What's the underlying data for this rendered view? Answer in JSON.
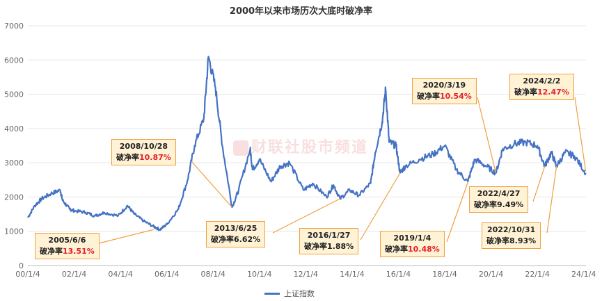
{
  "chart_data": {
    "type": "line",
    "title": "2000年以来市场历次大底时破净率",
    "ylim": [
      0,
      7000
    ],
    "yticks": [
      0,
      1000,
      2000,
      3000,
      4000,
      5000,
      6000,
      7000
    ],
    "xticks": [
      "00/1/4",
      "02/1/4",
      "04/1/4",
      "06/1/4",
      "08/1/4",
      "10/1/4",
      "12/1/4",
      "14/1/4",
      "16/1/4",
      "18/1/4",
      "20/1/4",
      "22/1/4",
      "24/1/4"
    ],
    "xlim": [
      2000.0,
      2024.1
    ],
    "series": [
      {
        "name": "上证指数",
        "color": "#4472c4",
        "x": [
          2000.0,
          2000.3,
          2000.6,
          2001.0,
          2001.4,
          2001.5,
          2001.8,
          2002.0,
          2002.5,
          2002.9,
          2003.3,
          2003.9,
          2004.3,
          2004.6,
          2005.0,
          2005.4,
          2005.7,
          2006.0,
          2006.5,
          2006.9,
          2007.2,
          2007.6,
          2007.8,
          2008.1,
          2008.4,
          2008.82,
          2009.1,
          2009.6,
          2009.7,
          2010.0,
          2010.5,
          2010.9,
          2011.3,
          2011.9,
          2012.3,
          2012.9,
          2013.2,
          2013.48,
          2013.9,
          2014.3,
          2014.8,
          2015.0,
          2015.3,
          2015.45,
          2015.6,
          2015.9,
          2016.07,
          2016.3,
          2016.9,
          2017.5,
          2018.0,
          2018.5,
          2019.0,
          2019.3,
          2019.8,
          2020.21,
          2020.5,
          2021.0,
          2021.5,
          2022.0,
          2022.32,
          2022.6,
          2022.83,
          2023.2,
          2023.6,
          2024.09
        ],
        "y": [
          1400,
          1750,
          1950,
          2100,
          2200,
          1900,
          1650,
          1600,
          1550,
          1450,
          1550,
          1450,
          1750,
          1500,
          1300,
          1150,
          1050,
          1200,
          1650,
          2500,
          3500,
          4300,
          6100,
          5200,
          3500,
          1700,
          2200,
          3400,
          2800,
          3100,
          2450,
          2900,
          3000,
          2200,
          2400,
          2000,
          2350,
          1950,
          2200,
          2050,
          2400,
          3300,
          4200,
          5150,
          3600,
          3500,
          2700,
          2900,
          3100,
          3250,
          3500,
          2800,
          2450,
          3100,
          2900,
          2700,
          3400,
          3550,
          3600,
          3500,
          2900,
          3300,
          2900,
          3300,
          3200,
          2700
        ]
      }
    ],
    "annotations": [
      {
        "date": "2005/6/6",
        "pb_label": "破净率",
        "value": "13.51%",
        "highlight": true
      },
      {
        "date": "2008/10/28",
        "pb_label": "破净率",
        "value": "10.87%",
        "highlight": true
      },
      {
        "date": "2013/6/25",
        "pb_label": "破净率",
        "value": "6.62%",
        "highlight": false
      },
      {
        "date": "2016/1/27",
        "pb_label": "破净率",
        "value": "1.88%",
        "highlight": false
      },
      {
        "date": "2019/1/4",
        "pb_label": "破净率",
        "value": "10.48%",
        "highlight": true
      },
      {
        "date": "2020/3/19",
        "pb_label": "破净率",
        "value": "10.54%",
        "highlight": true
      },
      {
        "date": "2022/4/27",
        "pb_label": "破净率",
        "value": "9.49%",
        "highlight": false
      },
      {
        "date": "2022/10/31",
        "pb_label": "破净率",
        "value": "8.93%",
        "highlight": false
      },
      {
        "date": "2024/2/2",
        "pb_label": "破净率",
        "value": "12.47%",
        "highlight": true
      }
    ],
    "legend": "bottom",
    "grid": true
  },
  "watermark": "财联社股市频道",
  "colors": {
    "line": "#4472c4",
    "highlight": "#e4202a",
    "callout_bg": "#fff2d5",
    "callout_border": "#f0a040",
    "leader": "#f0a040"
  }
}
